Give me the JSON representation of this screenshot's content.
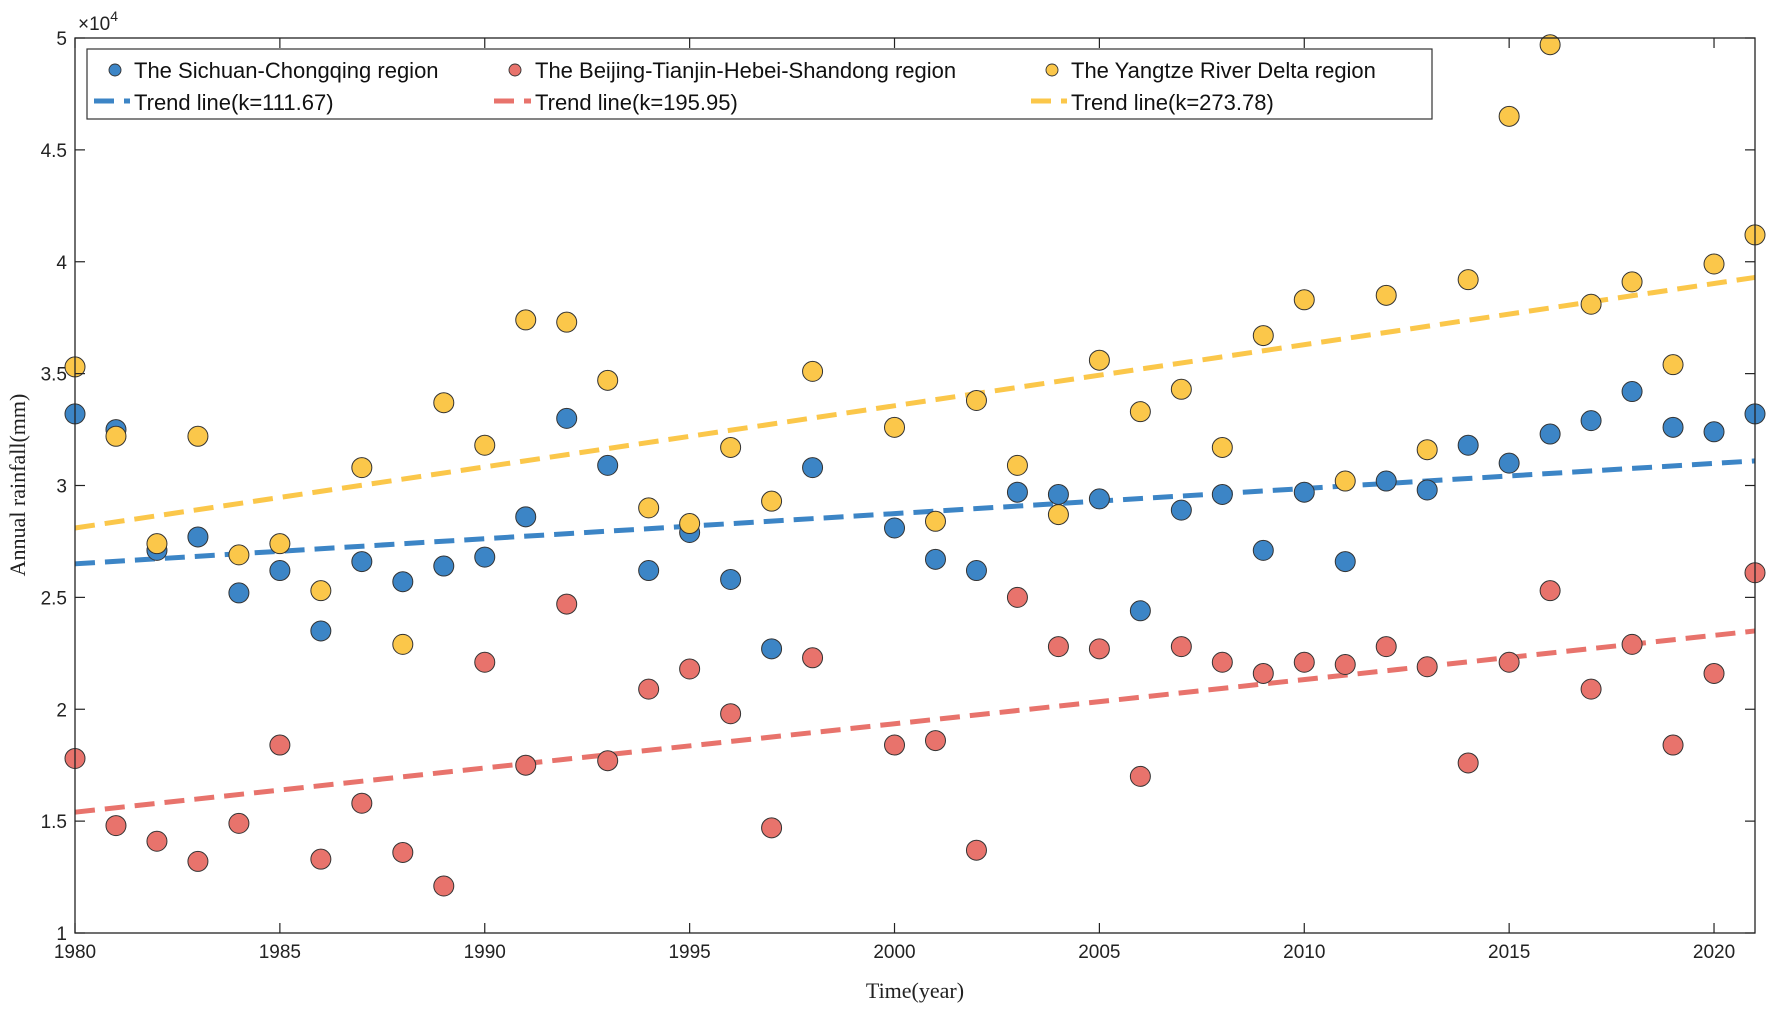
{
  "chart_data": {
    "type": "scatter",
    "xlabel": "Time(year)",
    "ylabel": "Annual rainfall(mm)",
    "y_multiplier": {
      "base": "×10",
      "exponent": "4"
    },
    "xlim": [
      1980,
      2021
    ],
    "ylim": [
      1,
      5
    ],
    "x_ticks": [
      1980,
      1985,
      1990,
      1995,
      2000,
      2005,
      2010,
      2015,
      2020
    ],
    "y_ticks": [
      1,
      1.5,
      2,
      2.5,
      3,
      3.5,
      4,
      4.5,
      5
    ],
    "y_tick_labels": [
      "1",
      "1.5",
      "2",
      "2.5",
      "3",
      "3.5",
      "4",
      "4.5",
      "5"
    ],
    "x": [
      1980,
      1981,
      1982,
      1983,
      1984,
      1985,
      1986,
      1987,
      1988,
      1989,
      1990,
      1991,
      1992,
      1993,
      1994,
      1995,
      1996,
      1997,
      1998,
      2000,
      2001,
      2002,
      2003,
      2004,
      2005,
      2006,
      2007,
      2008,
      2009,
      2010,
      2011,
      2012,
      2013,
      2014,
      2015,
      2016,
      2017,
      2018,
      2019,
      2020,
      2021
    ],
    "series": [
      {
        "name": "The Sichuan-Chongqing region",
        "color": "#3C85C6",
        "values": [
          3.32,
          3.25,
          2.71,
          2.77,
          2.52,
          2.62,
          2.35,
          2.66,
          2.57,
          2.64,
          2.68,
          2.86,
          3.3,
          3.09,
          2.62,
          2.79,
          2.58,
          2.27,
          3.08,
          2.81,
          2.67,
          2.62,
          2.97,
          2.96,
          2.94,
          2.44,
          2.89,
          2.96,
          2.71,
          2.97,
          2.66,
          3.02,
          2.98,
          3.18,
          3.1,
          3.23,
          3.29,
          3.42,
          3.26,
          3.24,
          3.32
        ],
        "trend_label": "Trend line(k=111.67)",
        "trend": [
          2.65,
          3.11
        ]
      },
      {
        "name": "The Beijing-Tianjin-Hebei-Shandong region",
        "color": "#E8736C",
        "values": [
          1.78,
          1.48,
          1.41,
          1.32,
          1.49,
          1.84,
          1.33,
          1.58,
          1.36,
          1.21,
          2.21,
          1.75,
          2.47,
          1.77,
          2.09,
          2.18,
          1.98,
          1.47,
          2.23,
          1.84,
          1.86,
          1.37,
          2.5,
          2.28,
          2.27,
          1.7,
          2.28,
          2.21,
          2.16,
          2.21,
          2.2,
          2.28,
          2.19,
          1.76,
          2.21,
          2.53,
          2.09,
          2.29,
          1.84,
          2.16,
          2.61
        ],
        "trend_label": "Trend line(k=195.95)",
        "trend": [
          1.54,
          2.35
        ]
      },
      {
        "name": "The Yangtze River Delta region",
        "color": "#FBC74A",
        "values": [
          3.53,
          3.22,
          2.74,
          3.22,
          2.69,
          2.74,
          2.53,
          3.08,
          2.29,
          3.37,
          3.18,
          3.74,
          3.73,
          3.47,
          2.9,
          2.83,
          3.17,
          2.93,
          3.51,
          3.26,
          2.84,
          3.38,
          3.09,
          2.87,
          3.56,
          3.33,
          3.43,
          3.17,
          3.67,
          3.83,
          3.02,
          3.85,
          3.16,
          3.92,
          4.65,
          4.97,
          3.81,
          3.91,
          3.54,
          3.99,
          4.12
        ],
        "trend_label": "Trend line(k=273.78)",
        "trend": [
          2.81,
          3.93
        ]
      }
    ]
  }
}
